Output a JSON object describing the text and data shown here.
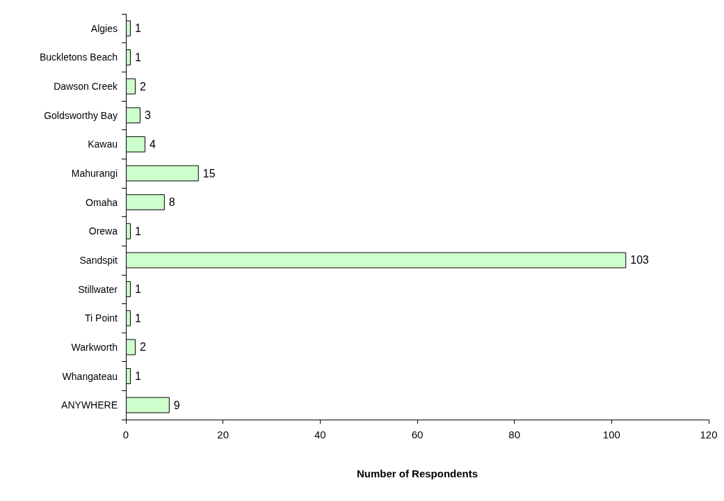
{
  "chart_data": {
    "type": "bar",
    "orientation": "horizontal",
    "xlabel": "Number of Respondents",
    "categories": [
      "Algies",
      "Buckletons Beach",
      "Dawson Creek",
      "Goldsworthy Bay",
      "Kawau",
      "Mahurangi",
      "Omaha",
      "Orewa",
      "Sandspit",
      "Stillwater",
      "Ti Point",
      "Warkworth",
      "Whangateau",
      "ANYWHERE"
    ],
    "values": [
      1,
      1,
      2,
      3,
      4,
      15,
      8,
      1,
      103,
      1,
      1,
      2,
      1,
      9
    ],
    "color": "#ccffcc",
    "xlim": [
      0,
      120
    ],
    "xticks": [
      0,
      20,
      40,
      60,
      80,
      100,
      120
    ],
    "data_labels": true,
    "grid": false
  }
}
